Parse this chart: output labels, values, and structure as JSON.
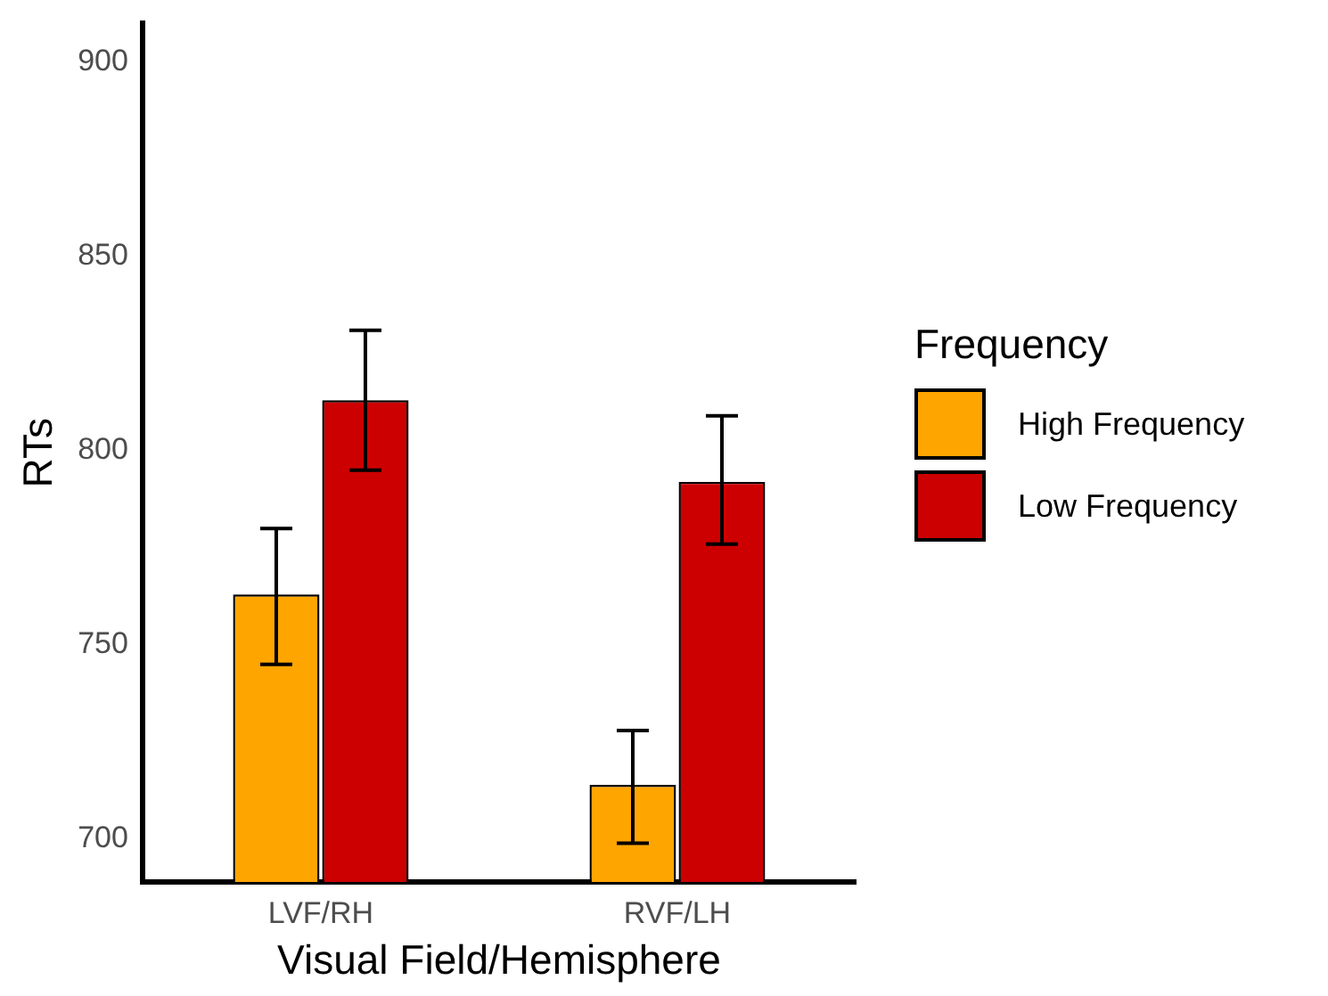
{
  "chart_data": {
    "type": "bar",
    "xlabel": "Visual Field/Hemisphere",
    "ylabel": "RTs",
    "legend_title": "Frequency",
    "legend": "right",
    "grid": false,
    "categories": [
      "LVF/RH",
      "RVF/LH"
    ],
    "series": [
      {
        "name": "High Frequency",
        "color": "#ffa500",
        "values": [
          763,
          714
        ],
        "errors": [
          [
            745,
            780
          ],
          [
            699,
            728
          ]
        ]
      },
      {
        "name": "Low Frequency",
        "color": "#cc0000",
        "values": [
          813,
          792
        ],
        "errors": [
          [
            795,
            831
          ],
          [
            776,
            809
          ]
        ]
      }
    ],
    "ylim": [
      689,
      910
    ],
    "yticks": [
      700,
      750,
      800,
      850,
      900
    ]
  }
}
